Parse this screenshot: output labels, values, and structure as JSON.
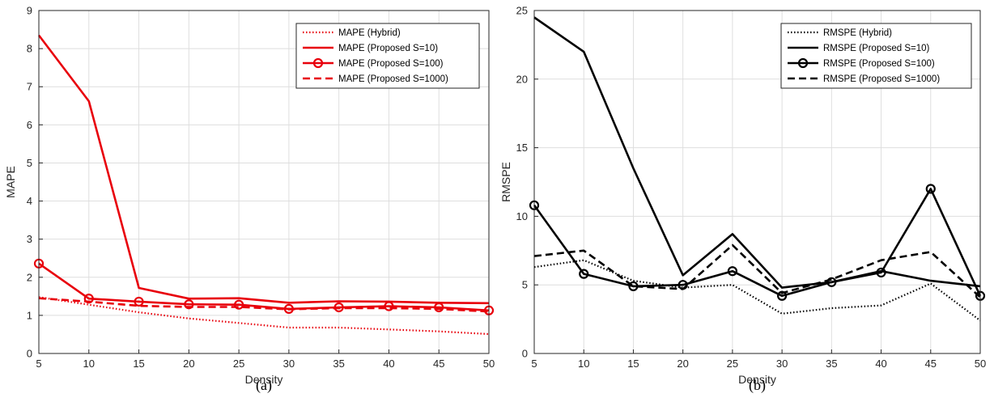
{
  "chart_data": [
    {
      "type": "line",
      "caption": "(a)",
      "xlabel": "Density",
      "ylabel": "MAPE",
      "xlim": [
        5,
        50
      ],
      "ylim": [
        0,
        9
      ],
      "xticks": [
        5,
        10,
        15,
        20,
        25,
        30,
        35,
        40,
        45,
        50
      ],
      "yticks": [
        0,
        1,
        2,
        3,
        4,
        5,
        6,
        7,
        8,
        9
      ],
      "grid": true,
      "legend_position": "top-right",
      "color": "#e8000b",
      "x": [
        5,
        10,
        15,
        20,
        25,
        30,
        35,
        40,
        45,
        50
      ],
      "series": [
        {
          "name": "MAPE (Hybrid)",
          "style": "dotted",
          "marker": "none",
          "values": [
            1.48,
            1.28,
            1.08,
            0.92,
            0.8,
            0.68,
            0.68,
            0.63,
            0.58,
            0.51
          ]
        },
        {
          "name": "MAPE (Proposed S=10)",
          "style": "solid",
          "marker": "none",
          "values": [
            8.35,
            6.62,
            1.72,
            1.44,
            1.45,
            1.33,
            1.37,
            1.36,
            1.33,
            1.32
          ]
        },
        {
          "name": "MAPE (Proposed S=100)",
          "style": "solid",
          "marker": "circle",
          "values": [
            2.36,
            1.44,
            1.36,
            1.29,
            1.28,
            1.17,
            1.21,
            1.24,
            1.21,
            1.13
          ]
        },
        {
          "name": "MAPE (Proposed S=1000)",
          "style": "dashed",
          "marker": "none",
          "values": [
            1.45,
            1.36,
            1.25,
            1.22,
            1.22,
            1.16,
            1.19,
            1.19,
            1.17,
            1.1
          ]
        }
      ]
    },
    {
      "type": "line",
      "caption": "(b)",
      "xlabel": "Density",
      "ylabel": "RMSPE",
      "xlim": [
        5,
        50
      ],
      "ylim": [
        0,
        25
      ],
      "xticks": [
        5,
        10,
        15,
        20,
        25,
        30,
        35,
        40,
        45,
        50
      ],
      "yticks": [
        0,
        5,
        10,
        15,
        20,
        25
      ],
      "grid": true,
      "legend_position": "top-right",
      "color": "#000000",
      "x": [
        5,
        10,
        15,
        20,
        25,
        30,
        35,
        40,
        45,
        50
      ],
      "series": [
        {
          "name": "RMSPE (Hybrid)",
          "style": "dotted",
          "marker": "none",
          "values": [
            6.3,
            6.8,
            5.3,
            4.8,
            5.0,
            2.9,
            3.3,
            3.5,
            5.1,
            2.4
          ]
        },
        {
          "name": "RMSPE (Proposed S=10)",
          "style": "solid",
          "marker": "none",
          "values": [
            24.5,
            22.0,
            13.5,
            5.7,
            8.7,
            4.8,
            5.2,
            6.0,
            5.3,
            4.9
          ]
        },
        {
          "name": "RMSPE (Proposed S=100)",
          "style": "solid",
          "marker": "circle",
          "values": [
            10.8,
            5.8,
            4.9,
            5.0,
            6.0,
            4.2,
            5.2,
            5.9,
            12.0,
            4.2
          ]
        },
        {
          "name": "RMSPE (Proposed S=1000)",
          "style": "dashed",
          "marker": "none",
          "values": [
            7.1,
            7.5,
            4.9,
            4.7,
            7.9,
            4.4,
            5.4,
            6.8,
            7.4,
            4.1
          ]
        }
      ]
    }
  ]
}
